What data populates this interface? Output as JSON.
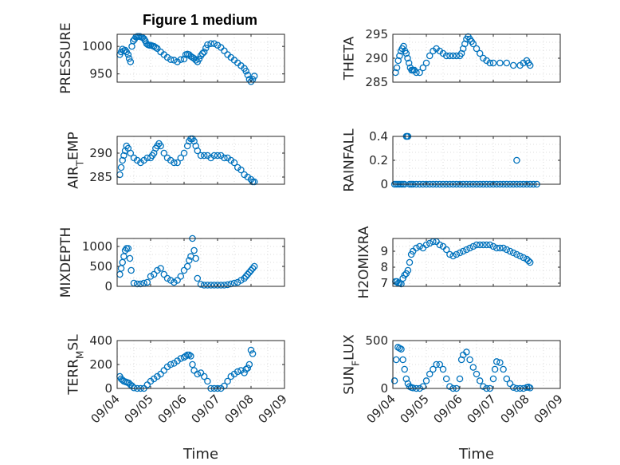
{
  "figure": {
    "title": "Figure 1 medium",
    "marker_color": "#0072bd",
    "axis_color": "#262626",
    "grid_color": "#dcdcdc"
  },
  "chart_data": [
    {
      "type": "scatter",
      "ylabel": "PRESSURE",
      "xlim": [
        0,
        5
      ],
      "ylim": [
        935,
        1022
      ],
      "yticks": [
        950,
        1000
      ],
      "xticks": [
        0,
        1,
        2,
        3,
        4,
        5
      ],
      "xticklabels": [],
      "grid": true,
      "x": [
        0.08,
        0.12,
        0.16,
        0.2,
        0.24,
        0.28,
        0.33,
        0.36,
        0.4,
        0.44,
        0.48,
        0.52,
        0.56,
        0.6,
        0.64,
        0.68,
        0.72,
        0.76,
        0.8,
        0.84,
        0.88,
        0.92,
        0.96,
        1.0,
        1.05,
        1.1,
        1.15,
        1.2,
        1.3,
        1.4,
        1.5,
        1.6,
        1.7,
        1.8,
        1.9,
        2.0,
        2.05,
        2.1,
        2.15,
        2.2,
        2.25,
        2.3,
        2.35,
        2.4,
        2.45,
        2.5,
        2.55,
        2.6,
        2.65,
        2.7,
        2.8,
        2.9,
        3.0,
        3.1,
        3.2,
        3.3,
        3.4,
        3.5,
        3.6,
        3.7,
        3.8,
        3.85,
        3.9,
        3.95,
        4.0,
        4.05,
        4.1
      ],
      "y": [
        985,
        990,
        995,
        992,
        993,
        990,
        985,
        978,
        972,
        1000,
        1010,
        1013,
        1017,
        1018,
        1018,
        1018,
        1017,
        1016,
        1014,
        1010,
        1005,
        1003,
        1002,
        1002,
        1001,
        1000,
        998,
        996,
        990,
        985,
        980,
        976,
        975,
        972,
        976,
        977,
        985,
        986,
        985,
        982,
        980,
        978,
        975,
        972,
        977,
        983,
        987,
        990,
        997,
        1003,
        1005,
        1005,
        1002,
        998,
        992,
        985,
        980,
        975,
        970,
        965,
        960,
        955,
        948,
        940,
        936,
        940,
        946
      ]
    },
    {
      "type": "scatter",
      "ylabel": "THETA",
      "xlim": [
        0,
        5
      ],
      "ylim": [
        285,
        295
      ],
      "yticks": [
        285,
        290,
        295
      ],
      "xticks": [
        0,
        1,
        2,
        3,
        4,
        5
      ],
      "xticklabels": [],
      "grid": true,
      "x": [
        0.08,
        0.12,
        0.16,
        0.2,
        0.24,
        0.28,
        0.32,
        0.36,
        0.4,
        0.44,
        0.48,
        0.52,
        0.56,
        0.6,
        0.64,
        0.7,
        0.8,
        0.9,
        1.0,
        1.1,
        1.2,
        1.3,
        1.4,
        1.5,
        1.6,
        1.7,
        1.8,
        1.9,
        2.0,
        2.05,
        2.1,
        2.15,
        2.2,
        2.25,
        2.3,
        2.35,
        2.4,
        2.5,
        2.6,
        2.7,
        2.8,
        2.9,
        3.0,
        3.2,
        3.4,
        3.6,
        3.8,
        3.9,
        4.0,
        4.05,
        4.1
      ],
      "y": [
        287,
        288,
        289.5,
        290.5,
        291.5,
        292,
        292.5,
        291.5,
        291,
        290,
        289,
        288,
        287.5,
        287.5,
        287.5,
        287,
        287,
        288,
        289,
        290.5,
        291.5,
        292,
        291.5,
        291,
        290.5,
        290.5,
        290.5,
        290.5,
        290.5,
        291,
        292,
        293,
        294,
        294.5,
        294,
        293.5,
        293,
        292,
        291,
        290,
        289.5,
        289,
        289,
        289,
        289,
        288.5,
        288.5,
        289,
        289.5,
        289,
        288.5
      ]
    },
    {
      "type": "scatter",
      "ylabel": "AIR_TEMP",
      "xlim": [
        0,
        5
      ],
      "ylim": [
        283.5,
        293.5
      ],
      "yticks": [
        285,
        290
      ],
      "xticks": [
        0,
        1,
        2,
        3,
        4,
        5
      ],
      "xticklabels": [],
      "grid": true,
      "x": [
        0.08,
        0.12,
        0.16,
        0.2,
        0.24,
        0.28,
        0.33,
        0.4,
        0.5,
        0.6,
        0.7,
        0.8,
        0.9,
        1.0,
        1.05,
        1.1,
        1.15,
        1.2,
        1.25,
        1.3,
        1.4,
        1.5,
        1.6,
        1.7,
        1.8,
        1.9,
        2.0,
        2.1,
        2.15,
        2.2,
        2.25,
        2.3,
        2.35,
        2.4,
        2.5,
        2.6,
        2.7,
        2.8,
        2.9,
        3.0,
        3.1,
        3.2,
        3.3,
        3.4,
        3.5,
        3.6,
        3.7,
        3.8,
        3.9,
        4.0,
        4.05,
        4.1
      ],
      "y": [
        285.5,
        287,
        288.5,
        289.5,
        290.5,
        291.5,
        291,
        290,
        289,
        288.5,
        288,
        288.5,
        289,
        289,
        289.5,
        290,
        291,
        291.5,
        292,
        291.5,
        290,
        289,
        288.5,
        288,
        288,
        289,
        290,
        291.5,
        292.5,
        293,
        293,
        292.5,
        291.5,
        290.5,
        289.5,
        289.5,
        289.5,
        289,
        289.5,
        289.5,
        289.5,
        289,
        289,
        288.5,
        288,
        287,
        286.5,
        285.5,
        285,
        284.5,
        284,
        284
      ]
    },
    {
      "type": "scatter",
      "ylabel": "RAINFALL",
      "xlim": [
        0,
        5
      ],
      "ylim": [
        0,
        0.4
      ],
      "yticks": [
        0,
        0.2,
        0.4
      ],
      "xticks": [
        0,
        1,
        2,
        3,
        4,
        5
      ],
      "xticklabels": [],
      "grid": true,
      "x": [
        0.05,
        0.1,
        0.15,
        0.2,
        0.25,
        0.3,
        0.35,
        0.4,
        0.42,
        0.45,
        0.5,
        0.55,
        0.6,
        0.7,
        0.8,
        0.9,
        1.0,
        1.1,
        1.2,
        1.3,
        1.4,
        1.5,
        1.6,
        1.7,
        1.8,
        1.9,
        2.0,
        2.1,
        2.2,
        2.3,
        2.4,
        2.5,
        2.6,
        2.7,
        2.8,
        2.9,
        3.0,
        3.1,
        3.2,
        3.3,
        3.4,
        3.5,
        3.6,
        3.7,
        3.8,
        3.9,
        4.0,
        4.1,
        4.2,
        4.3,
        3.7
      ],
      "y": [
        0,
        0,
        0,
        0,
        0,
        0,
        0,
        0.4,
        0.4,
        0.4,
        0,
        0,
        0,
        0,
        0,
        0,
        0,
        0,
        0,
        0,
        0,
        0,
        0,
        0,
        0,
        0,
        0,
        0,
        0,
        0,
        0,
        0,
        0,
        0,
        0,
        0,
        0,
        0,
        0,
        0,
        0,
        0,
        0,
        0,
        0,
        0,
        0,
        0,
        0,
        0,
        0.2
      ]
    },
    {
      "type": "scatter",
      "ylabel": "MIXDEPTH",
      "xlim": [
        0,
        5
      ],
      "ylim": [
        0,
        1200
      ],
      "yticks": [
        0,
        500,
        1000
      ],
      "xticks": [
        0,
        1,
        2,
        3,
        4,
        5
      ],
      "xticklabels": [],
      "grid": true,
      "x": [
        0.08,
        0.12,
        0.16,
        0.2,
        0.24,
        0.28,
        0.33,
        0.38,
        0.42,
        0.5,
        0.6,
        0.7,
        0.8,
        0.9,
        1.0,
        1.1,
        1.2,
        1.3,
        1.4,
        1.5,
        1.6,
        1.7,
        1.8,
        1.9,
        2.0,
        2.1,
        2.15,
        2.2,
        2.25,
        2.3,
        2.35,
        2.4,
        2.5,
        2.6,
        2.7,
        2.8,
        2.9,
        3.0,
        3.1,
        3.2,
        3.3,
        3.4,
        3.5,
        3.6,
        3.7,
        3.8,
        3.85,
        3.9,
        3.95,
        4.0,
        4.05,
        4.1
      ],
      "y": [
        300,
        450,
        600,
        750,
        900,
        950,
        950,
        700,
        400,
        80,
        60,
        60,
        80,
        100,
        250,
        300,
        400,
        450,
        300,
        200,
        150,
        100,
        150,
        250,
        400,
        500,
        650,
        750,
        1200,
        900,
        700,
        200,
        50,
        30,
        30,
        30,
        30,
        30,
        30,
        30,
        40,
        60,
        80,
        100,
        150,
        200,
        250,
        300,
        350,
        400,
        450,
        500
      ]
    },
    {
      "type": "scatter",
      "ylabel": "H2OMIXRA",
      "xlim": [
        0,
        5
      ],
      "ylim": [
        6.8,
        9.8
      ],
      "yticks": [
        7,
        8,
        9
      ],
      "xticks": [
        0,
        1,
        2,
        3,
        4,
        5
      ],
      "xticklabels": [],
      "grid": true,
      "x": [
        0.08,
        0.12,
        0.16,
        0.2,
        0.25,
        0.3,
        0.35,
        0.4,
        0.45,
        0.5,
        0.55,
        0.6,
        0.7,
        0.8,
        0.9,
        1.0,
        1.1,
        1.2,
        1.3,
        1.4,
        1.5,
        1.6,
        1.7,
        1.8,
        1.9,
        2.0,
        2.1,
        2.2,
        2.3,
        2.4,
        2.5,
        2.6,
        2.7,
        2.8,
        2.9,
        3.0,
        3.1,
        3.2,
        3.3,
        3.4,
        3.5,
        3.6,
        3.7,
        3.8,
        3.9,
        4.0,
        4.05,
        4.1
      ],
      "y": [
        7.1,
        7.1,
        7,
        7,
        6.95,
        7.3,
        7.5,
        7.6,
        7.8,
        8.3,
        8.8,
        9.0,
        9.2,
        9.3,
        9.2,
        9.4,
        9.5,
        9.6,
        9.6,
        9.4,
        9.3,
        9.1,
        8.8,
        8.7,
        8.8,
        8.9,
        9.0,
        9.1,
        9.2,
        9.3,
        9.4,
        9.4,
        9.4,
        9.4,
        9.4,
        9.3,
        9.2,
        9.2,
        9.2,
        9.1,
        9.0,
        8.9,
        8.8,
        8.7,
        8.6,
        8.5,
        8.4,
        8.3
      ]
    },
    {
      "type": "scatter",
      "ylabel": "TERR_MSL",
      "xlim": [
        0,
        5
      ],
      "ylim": [
        0,
        400
      ],
      "yticks": [
        0,
        200,
        400
      ],
      "xticks": [
        0,
        1,
        2,
        3,
        4,
        5
      ],
      "xticklabels": [
        "09/04",
        "09/05",
        "09/06",
        "09/07",
        "09/08",
        "09/09"
      ],
      "xlabel": "Time",
      "grid": true,
      "x": [
        0.08,
        0.12,
        0.16,
        0.2,
        0.25,
        0.3,
        0.35,
        0.4,
        0.45,
        0.5,
        0.6,
        0.7,
        0.8,
        0.9,
        1.0,
        1.1,
        1.2,
        1.3,
        1.4,
        1.5,
        1.6,
        1.7,
        1.8,
        1.9,
        2.0,
        2.05,
        2.1,
        2.15,
        2.2,
        2.25,
        2.3,
        2.4,
        2.5,
        2.6,
        2.7,
        2.8,
        2.9,
        3.0,
        3.1,
        3.2,
        3.3,
        3.4,
        3.5,
        3.6,
        3.7,
        3.8,
        3.85,
        3.9,
        3.95,
        4.0,
        4.05
      ],
      "y": [
        100,
        80,
        70,
        60,
        55,
        50,
        45,
        30,
        20,
        5,
        0,
        0,
        0,
        30,
        60,
        80,
        100,
        120,
        150,
        180,
        200,
        210,
        230,
        250,
        260,
        270,
        280,
        280,
        270,
        200,
        150,
        120,
        130,
        100,
        60,
        0,
        0,
        0,
        0,
        20,
        60,
        100,
        120,
        140,
        150,
        130,
        160,
        170,
        200,
        320,
        290
      ]
    },
    {
      "type": "scatter",
      "ylabel": "SUN_FLUX",
      "xlim": [
        0,
        5
      ],
      "ylim": [
        0,
        500
      ],
      "yticks": [
        0,
        500
      ],
      "xticks": [
        0,
        1,
        2,
        3,
        4,
        5
      ],
      "xticklabels": [
        "09/04",
        "09/05",
        "09/06",
        "09/07",
        "09/08",
        "09/09"
      ],
      "xlabel": "Time",
      "grid": true,
      "x": [
        0.05,
        0.1,
        0.15,
        0.2,
        0.25,
        0.3,
        0.35,
        0.4,
        0.45,
        0.5,
        0.55,
        0.6,
        0.7,
        0.8,
        0.9,
        1.0,
        1.1,
        1.2,
        1.3,
        1.4,
        1.5,
        1.6,
        1.7,
        1.8,
        1.9,
        2.0,
        2.05,
        2.1,
        2.2,
        2.3,
        2.4,
        2.5,
        2.6,
        2.7,
        2.8,
        2.9,
        3.0,
        3.05,
        3.1,
        3.2,
        3.3,
        3.4,
        3.5,
        3.6,
        3.7,
        3.8,
        3.9,
        4.0,
        4.05,
        4.1
      ],
      "y": [
        80,
        300,
        430,
        420,
        410,
        300,
        200,
        100,
        50,
        20,
        10,
        5,
        0,
        0,
        20,
        80,
        150,
        200,
        250,
        250,
        200,
        100,
        20,
        0,
        0,
        100,
        300,
        350,
        380,
        300,
        220,
        150,
        80,
        20,
        0,
        0,
        100,
        200,
        280,
        270,
        200,
        100,
        50,
        10,
        0,
        0,
        0,
        10,
        15,
        5
      ]
    }
  ]
}
